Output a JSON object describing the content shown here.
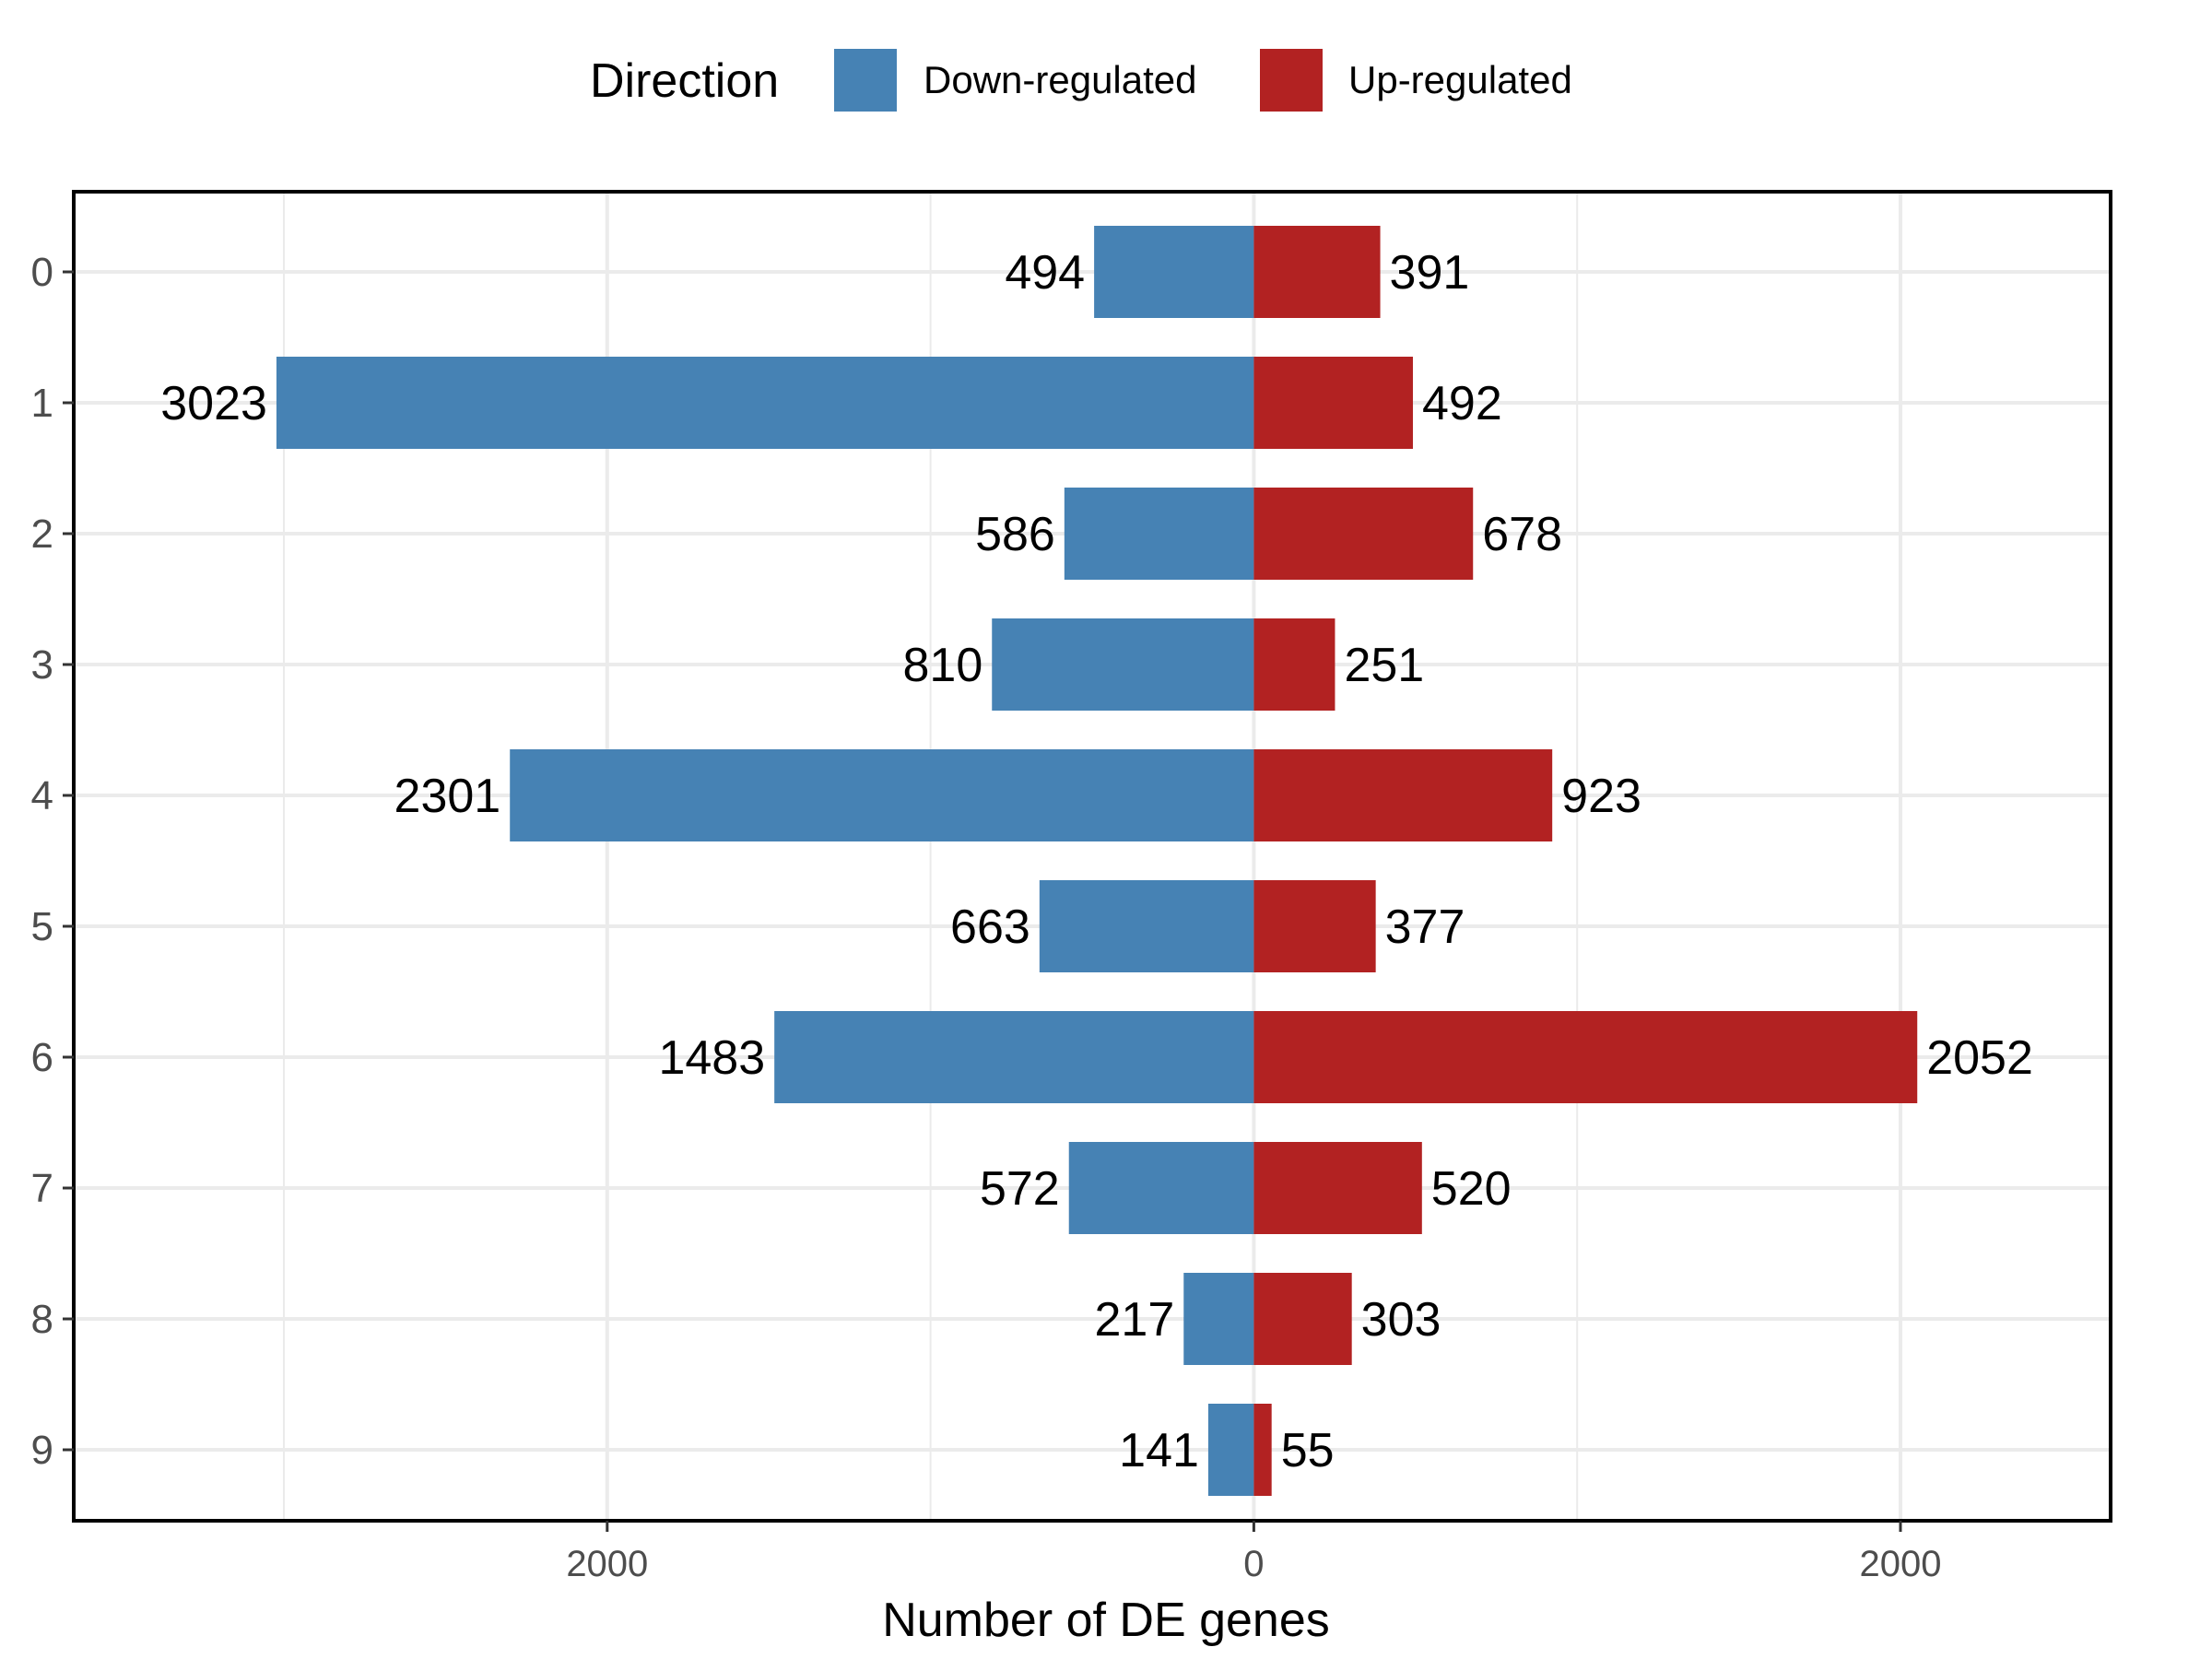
{
  "chart_data": {
    "type": "bar",
    "orientation": "horizontal-diverging",
    "categories": [
      "0",
      "1",
      "2",
      "3",
      "4",
      "5",
      "6",
      "7",
      "8",
      "9"
    ],
    "series": [
      {
        "name": "Down-regulated",
        "color": "#4682B4",
        "sign": -1,
        "values": [
          494,
          3023,
          586,
          810,
          2301,
          663,
          1483,
          572,
          217,
          141
        ]
      },
      {
        "name": "Up-regulated",
        "color": "#B22222",
        "sign": 1,
        "values": [
          391,
          492,
          678,
          251,
          923,
          377,
          2052,
          520,
          303,
          55
        ]
      }
    ],
    "xlabel": "Number of DE genes",
    "ylabel": "",
    "xlim": [
      -3650,
      2650
    ],
    "x_ticks": [
      -2000,
      0,
      2000
    ],
    "x_tick_labels": [
      "2000",
      "0",
      "2000"
    ],
    "grid": true,
    "legend": {
      "title": "Direction",
      "position": "top"
    }
  }
}
